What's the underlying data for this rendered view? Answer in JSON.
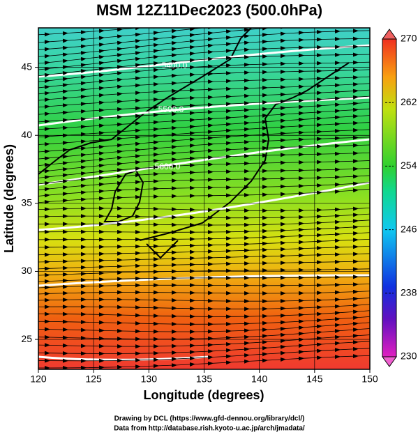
{
  "title": "MSM 12Z11Dec2023 (500.0hPa)",
  "x_label": "Longitude (degrees)",
  "y_label": "Latitude  (degrees)",
  "xlim": [
    120,
    150
  ],
  "ylim": [
    22.8,
    47.9
  ],
  "xticks": [
    120,
    125,
    130,
    135,
    140,
    145,
    150
  ],
  "yticks": [
    25,
    30,
    35,
    40,
    45
  ],
  "colorbar": {
    "lim": [
      230,
      270
    ],
    "ticks": [
      230,
      238,
      246,
      254,
      262,
      270
    ]
  },
  "contour_labels": [
    "5400.0",
    "5500.0",
    "5600.0"
  ],
  "credits": [
    "Drawing by DCL (https://www.gfd-dennou.org/library/dcl/)",
    "Data from http://database.rish.kyoto-u.ac.jp/arch/jmadata/"
  ]
}
